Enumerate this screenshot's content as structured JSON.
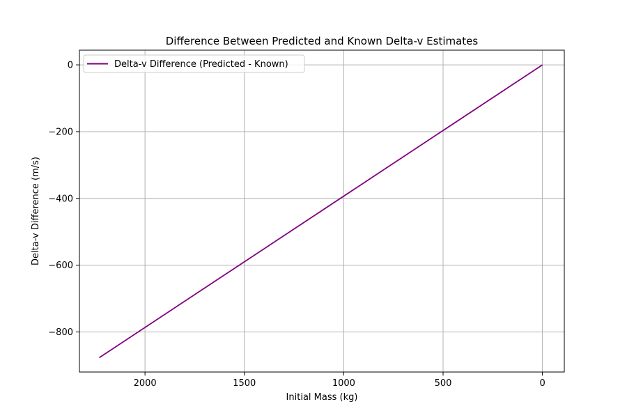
{
  "chart_data": {
    "type": "line",
    "title": "Difference Between Predicted and Known Delta-v Estimates",
    "xlabel": "Initial Mass (kg)",
    "ylabel": "Delta-v Difference (m/s)",
    "x_inverted": true,
    "xlim": [
      2330,
      -110
    ],
    "ylim": [
      -920,
      44
    ],
    "xticks": [
      2000,
      1500,
      1000,
      500,
      0
    ],
    "yticks": [
      0,
      -200,
      -400,
      -600,
      -800
    ],
    "xtick_labels": [
      "2000",
      "1500",
      "1000",
      "500",
      "0"
    ],
    "ytick_labels": [
      "0",
      "−200",
      "−400",
      "−600",
      "−800"
    ],
    "grid": true,
    "legend_position": "upper-left",
    "series": [
      {
        "name": "Delta-v Difference (Predicted - Known)",
        "color": "#800080",
        "x": [
          2230,
          0
        ],
        "y": [
          -877,
          0
        ]
      }
    ]
  }
}
